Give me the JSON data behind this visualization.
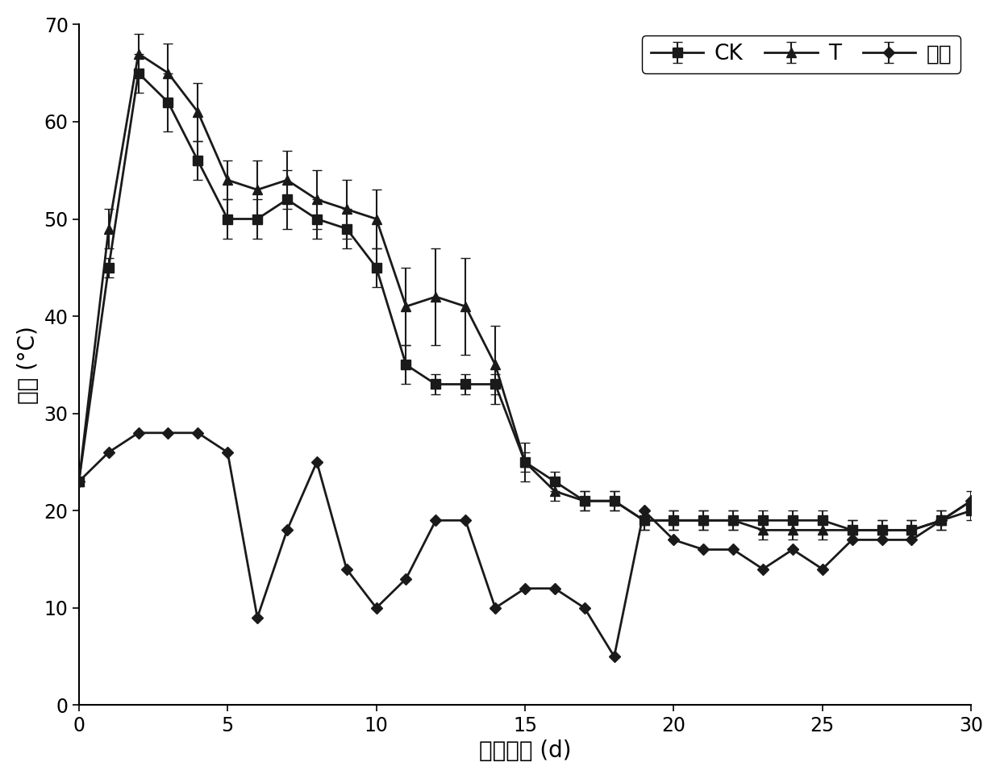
{
  "title": "",
  "xlabel": "堆肆时间 (d)",
  "ylabel": "温度 (°C)",
  "xlim": [
    0,
    30
  ],
  "ylim": [
    0,
    70
  ],
  "xticks": [
    0,
    5,
    10,
    15,
    20,
    25,
    30
  ],
  "yticks": [
    0,
    10,
    20,
    30,
    40,
    50,
    60,
    70
  ],
  "line_color": "#1a1a1a",
  "CK_x": [
    0,
    1,
    2,
    3,
    4,
    5,
    6,
    7,
    8,
    9,
    10,
    11,
    12,
    13,
    14,
    15,
    16,
    17,
    18,
    19,
    20,
    21,
    22,
    23,
    24,
    25,
    26,
    27,
    28,
    29,
    30
  ],
  "CK_y": [
    23,
    45,
    65,
    62,
    56,
    50,
    50,
    52,
    50,
    49,
    45,
    35,
    33,
    33,
    33,
    25,
    23,
    21,
    21,
    19,
    19,
    19,
    19,
    19,
    19,
    19,
    18,
    18,
    18,
    19,
    20
  ],
  "CK_err": [
    0,
    1,
    2,
    3,
    2,
    2,
    2,
    3,
    2,
    2,
    2,
    2,
    1,
    1,
    1,
    1,
    1,
    1,
    1,
    1,
    1,
    1,
    1,
    1,
    1,
    1,
    1,
    1,
    1,
    1,
    1
  ],
  "T_x": [
    0,
    1,
    2,
    3,
    4,
    5,
    6,
    7,
    8,
    9,
    10,
    11,
    12,
    13,
    14,
    15,
    16,
    17,
    18,
    19,
    20,
    21,
    22,
    23,
    24,
    25,
    26,
    27,
    28,
    29,
    30
  ],
  "T_y": [
    23,
    49,
    67,
    65,
    61,
    54,
    53,
    54,
    52,
    51,
    50,
    41,
    42,
    41,
    35,
    25,
    22,
    21,
    21,
    19,
    19,
    19,
    19,
    18,
    18,
    18,
    18,
    18,
    18,
    19,
    21
  ],
  "T_err": [
    0,
    2,
    2,
    3,
    3,
    2,
    3,
    3,
    3,
    3,
    3,
    4,
    5,
    5,
    4,
    2,
    1,
    1,
    1,
    1,
    1,
    1,
    1,
    1,
    1,
    1,
    1,
    1,
    1,
    1,
    1
  ],
  "RT_x": [
    0,
    1,
    2,
    3,
    4,
    5,
    6,
    7,
    8,
    9,
    10,
    11,
    12,
    13,
    14,
    15,
    16,
    17,
    18,
    19,
    20,
    21,
    22,
    23,
    24,
    25,
    26,
    27,
    28,
    29,
    30
  ],
  "RT_y": [
    23,
    26,
    28,
    28,
    28,
    26,
    9,
    18,
    25,
    14,
    10,
    13,
    19,
    19,
    10,
    12,
    12,
    10,
    5,
    20,
    17,
    16,
    16,
    14,
    16,
    14,
    17,
    17,
    17,
    19,
    21
  ],
  "RT_err": [
    0,
    0,
    0,
    0,
    0,
    0,
    0,
    0,
    0,
    0,
    0,
    0,
    0,
    0,
    0,
    0,
    0,
    0,
    0,
    0,
    0,
    0,
    0,
    0,
    0,
    0,
    0,
    0,
    0,
    0,
    0
  ],
  "legend_labels": [
    "CK",
    "T",
    "室温"
  ],
  "legend_loc": "upper right",
  "fontsize_label": 20,
  "fontsize_tick": 17,
  "fontsize_legend": 19,
  "linewidth": 2.0,
  "markersize": 8,
  "capsize": 4,
  "elinewidth": 1.5
}
